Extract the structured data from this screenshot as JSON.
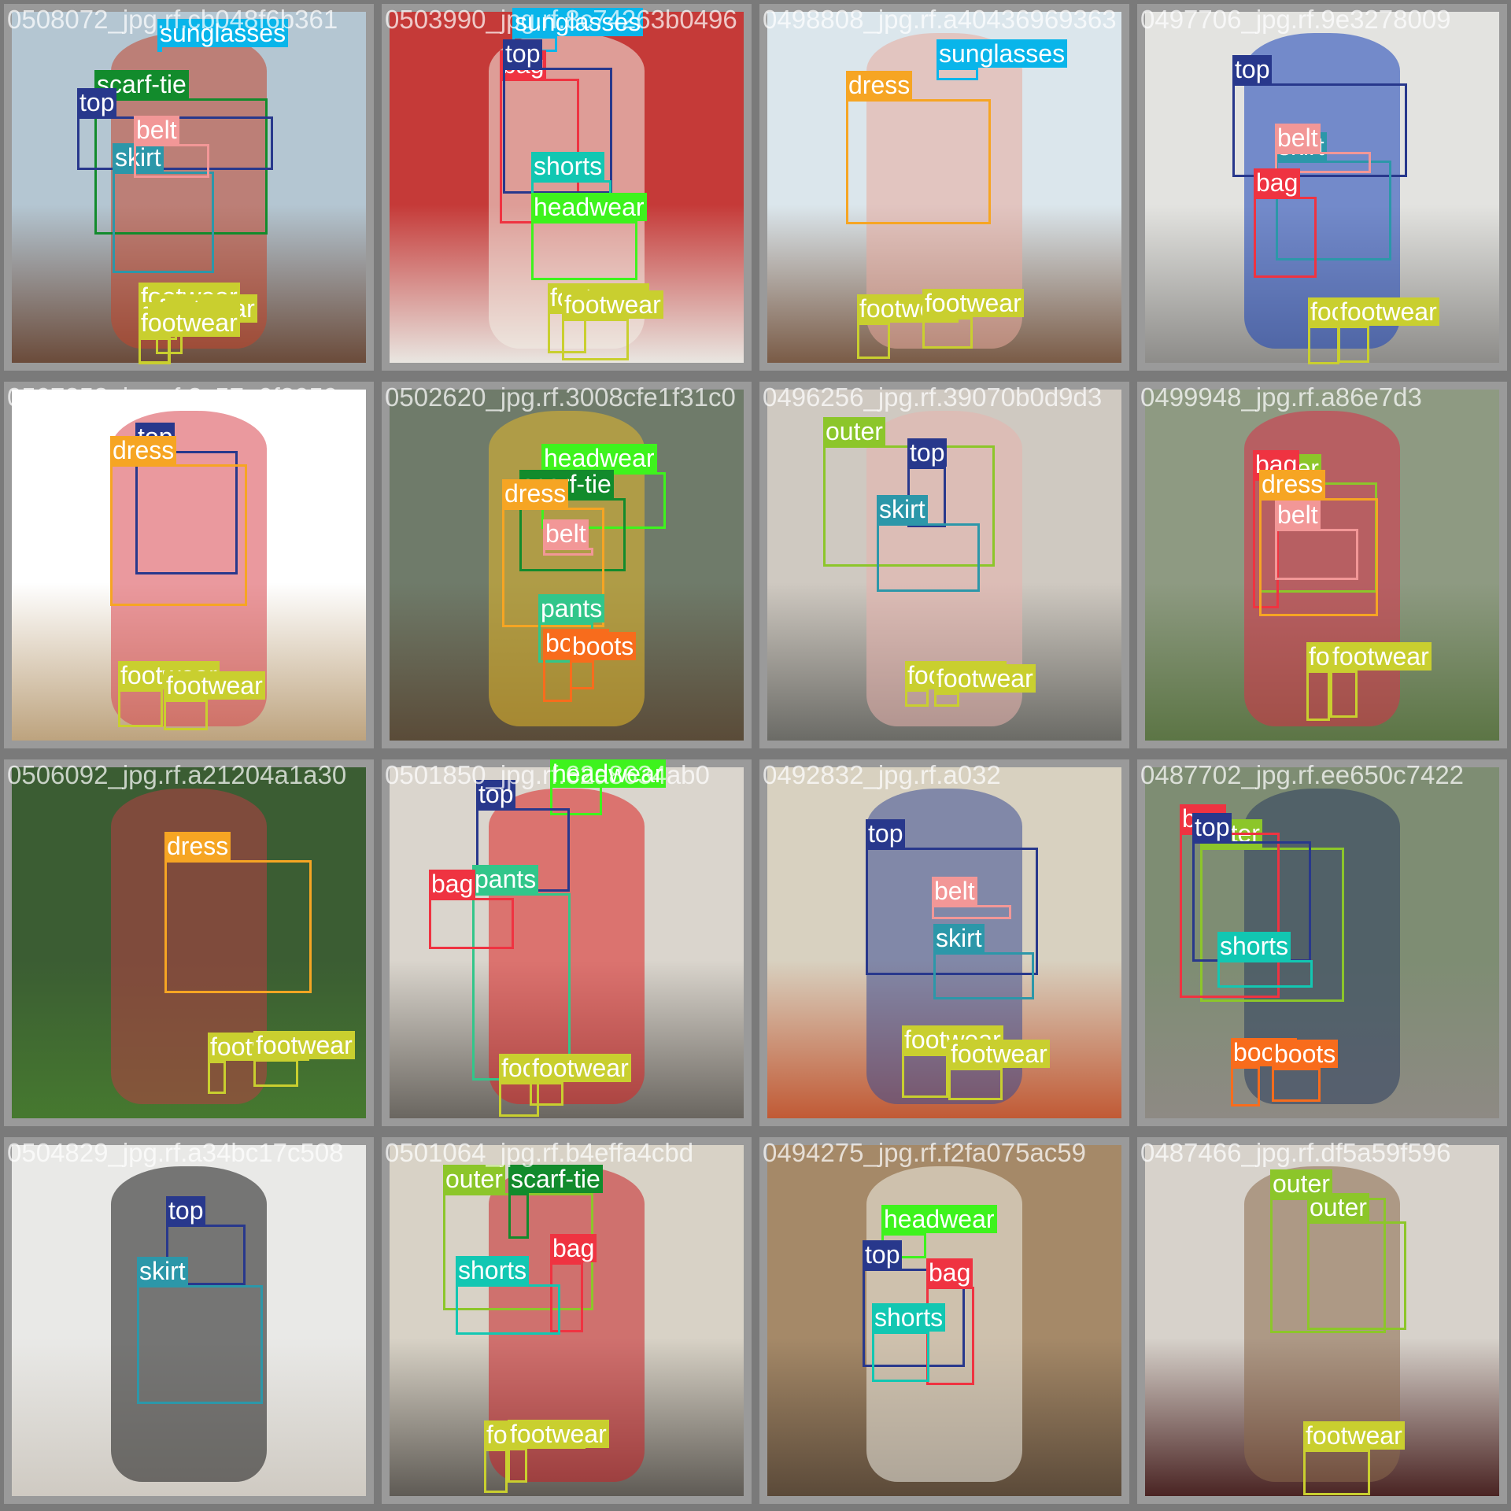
{
  "grid": {
    "rows": 4,
    "cols": 4
  },
  "class_colors": {
    "sunglasses": "#09b5ea",
    "scarf-tie": "#128b2c",
    "top": "#28388c",
    "skirt": "#2c97a9",
    "belt": "#f29797",
    "footwear": "#c9cf2f",
    "bag": "#ef3341",
    "shorts": "#12c7b2",
    "headwear": "#3ef31d",
    "dress": "#f6a523",
    "pants": "#32c68a",
    "boots": "#f86c1c",
    "outer": "#8cc62a"
  },
  "tiles": [
    {
      "filename": "0508072_jpg.rf.cb048f6b361",
      "bg": [
        "#b4c6d2",
        "#6b4b3a"
      ],
      "person": "#c2452c",
      "boxes": [
        {
          "cls": "sunglasses",
          "label": "sunglasses",
          "b": [
            200,
            60,
            46,
            18
          ]
        },
        {
          "cls": "scarf-tie",
          "label": "scarf-tie",
          "b": [
            120,
            125,
            340,
            298
          ]
        },
        {
          "cls": "top",
          "label": "top",
          "b": [
            98,
            148,
            347,
            216
          ]
        },
        {
          "cls": "skirt",
          "label": "skirt",
          "b": [
            143,
            218,
            272,
            347
          ]
        },
        {
          "cls": "belt",
          "label": "belt",
          "b": [
            170,
            183,
            266,
            226
          ]
        },
        {
          "cls": "footwear",
          "label": "footwear",
          "b": [
            176,
            395,
            225,
            432
          ]
        },
        {
          "cls": "footwear",
          "label": "footwear",
          "b": [
            198,
            410,
            232,
            450
          ]
        },
        {
          "cls": "footwear",
          "label": "footwear",
          "b": [
            176,
            420,
            216,
            462
          ]
        },
        {
          "cls": "footwear",
          "label": "footwear",
          "b": [
            176,
            428,
            217,
            463
          ]
        }
      ]
    },
    {
      "filename": "0503990_jpg.rf.8c74263b0496",
      "bg": [
        "#c53a38",
        "#e9e6e1"
      ],
      "person": "#f2efe6",
      "boxes": [
        {
          "cls": "sunglasses",
          "label": "sunglasses",
          "b": [
            651,
            46,
            708,
            66
          ]
        },
        {
          "cls": "bag",
          "label": "bag",
          "b": [
            635,
            100,
            736,
            284
          ]
        },
        {
          "cls": "top",
          "label": "top",
          "b": [
            639,
            86,
            778,
            246
          ]
        },
        {
          "cls": "shorts",
          "label": "shorts",
          "b": [
            675,
            229,
            777,
            281
          ]
        },
        {
          "cls": "headwear",
          "label": "headwear",
          "b": [
            675,
            281,
            810,
            356
          ]
        },
        {
          "cls": "footwear",
          "label": "footwear",
          "b": [
            696,
            396,
            745,
            449
          ]
        },
        {
          "cls": "footwear",
          "label": "footwear",
          "b": [
            714,
            405,
            799,
            458
          ]
        }
      ]
    },
    {
      "filename": "0498808_jpg.rf.a40436969363",
      "bg": [
        "#dbe6ec",
        "#7a5b46"
      ],
      "person": "#e8a99c",
      "boxes": [
        {
          "cls": "sunglasses",
          "label": "sunglasses",
          "b": [
            1190,
            86,
            1243,
            102
          ]
        },
        {
          "cls": "dress",
          "label": "dress",
          "b": [
            1075,
            126,
            1259,
            285
          ]
        },
        {
          "cls": "footwear",
          "label": "footwear",
          "b": [
            1089,
            410,
            1131,
            456
          ]
        },
        {
          "cls": "footwear",
          "label": "footwear",
          "b": [
            1172,
            403,
            1236,
            443
          ]
        }
      ]
    },
    {
      "filename": "0497706_jpg.rf.9e3278009",
      "bg": [
        "#e3e3e0",
        "#8d8c89"
      ],
      "person": "#1841b8",
      "boxes": [
        {
          "cls": "top",
          "label": "top",
          "b": [
            1566,
            106,
            1788,
            225
          ]
        },
        {
          "cls": "skirt",
          "label": "skirt",
          "b": [
            1621,
            204,
            1768,
            331
          ]
        },
        {
          "cls": "belt",
          "label": "belt",
          "b": [
            1620,
            193,
            1742,
            220
          ]
        },
        {
          "cls": "bag",
          "label": "bag",
          "b": [
            1593,
            250,
            1673,
            353
          ]
        },
        {
          "cls": "footwear",
          "label": "footwear",
          "b": [
            1662,
            414,
            1702,
            463
          ]
        },
        {
          "cls": "footwear",
          "label": "footwear",
          "b": [
            1700,
            414,
            1740,
            461
          ]
        }
      ]
    },
    {
      "filename": "0507258_jpg.rf.2c57a0f2059",
      "bg": [
        "#ffffff",
        "#bda37e"
      ],
      "person": "#d8454e",
      "boxes": [
        {
          "cls": "top",
          "label": "top",
          "b": [
            172,
            573,
            302,
            730
          ]
        },
        {
          "cls": "dress",
          "label": "dress",
          "b": [
            140,
            590,
            314,
            770
          ]
        },
        {
          "cls": "footwear",
          "label": "footwear",
          "b": [
            150,
            876,
            207,
            924
          ]
        },
        {
          "cls": "footwear",
          "label": "footwear",
          "b": [
            208,
            889,
            264,
            928
          ]
        }
      ]
    },
    {
      "filename": "0502620_jpg.rf.3008cfe1f31c0",
      "bg": [
        "#6f7b6a",
        "#5a4b38"
      ],
      "person": "#e3b82a",
      "boxes": [
        {
          "cls": "headwear",
          "label": "headwear",
          "b": [
            688,
            600,
            846,
            672
          ]
        },
        {
          "cls": "scarf-tie",
          "label": "scarf-tie",
          "b": [
            660,
            633,
            795,
            726
          ]
        },
        {
          "cls": "dress",
          "label": "dress",
          "b": [
            638,
            645,
            768,
            797
          ]
        },
        {
          "cls": "belt",
          "label": "belt",
          "b": [
            690,
            696,
            754,
            706
          ]
        },
        {
          "cls": "pants",
          "label": "pants",
          "b": [
            684,
            791,
            754,
            842
          ]
        },
        {
          "cls": "boots",
          "label": "boots",
          "b": [
            690,
            835,
            727,
            892
          ]
        },
        {
          "cls": "boots",
          "label": "boots",
          "b": [
            724,
            839,
            755,
            876
          ]
        }
      ]
    },
    {
      "filename": "0496256_jpg.rf.39070b0d9d3",
      "bg": [
        "#cfc9c1",
        "#6b6b66"
      ],
      "person": "#e7b3ad",
      "boxes": [
        {
          "cls": "outer",
          "label": "outer",
          "b": [
            1046,
            566,
            1264,
            720
          ]
        },
        {
          "cls": "top",
          "label": "top",
          "b": [
            1153,
            593,
            1202,
            670
          ]
        },
        {
          "cls": "skirt",
          "label": "skirt",
          "b": [
            1114,
            665,
            1245,
            752
          ]
        },
        {
          "cls": "footwear",
          "label": "footwear",
          "b": [
            1150,
            876,
            1180,
            898
          ]
        },
        {
          "cls": "footwear",
          "label": "footwear",
          "b": [
            1187,
            880,
            1219,
            898
          ]
        }
      ]
    },
    {
      "filename": "0499948_jpg.rf.a86e7d3",
      "bg": [
        "#8e9a82",
        "#5c7545"
      ],
      "person": "#d92f48",
      "boxes": [
        {
          "cls": "outer",
          "label": "outer",
          "b": [
            1600,
            613,
            1750,
            753
          ]
        },
        {
          "cls": "bag",
          "label": "bag",
          "b": [
            1592,
            608,
            1625,
            773
          ]
        },
        {
          "cls": "belt",
          "label": "belt",
          "b": [
            1620,
            672,
            1726,
            737
          ]
        },
        {
          "cls": "dress",
          "label": "dress",
          "b": [
            1600,
            633,
            1751,
            783
          ]
        },
        {
          "cls": "footwear",
          "label": "footwear",
          "b": [
            1660,
            852,
            1690,
            916
          ]
        },
        {
          "cls": "footwear",
          "label": "footwear",
          "b": [
            1690,
            852,
            1725,
            912
          ]
        }
      ]
    },
    {
      "filename": "0506092_jpg.rf.a21204a1a30",
      "bg": [
        "#3b5d33",
        "#46792f"
      ],
      "person": "#b83c43",
      "boxes": [
        {
          "cls": "dress",
          "label": "dress",
          "b": [
            209,
            1093,
            396,
            1262
          ]
        },
        {
          "cls": "footwear",
          "label": "footwear",
          "b": [
            264,
            1348,
            287,
            1390
          ]
        },
        {
          "cls": "footwear",
          "label": "footwear",
          "b": [
            322,
            1346,
            379,
            1381
          ]
        }
      ]
    },
    {
      "filename": "0501850_jpg.rf.62a8634ab0",
      "bg": [
        "#dad5cd",
        "#6a6660"
      ],
      "person": "#dc2323",
      "boxes": [
        {
          "cls": "headwear",
          "label": "headwear",
          "b": [
            699,
            980,
            765,
            1036
          ]
        },
        {
          "cls": "top",
          "label": "top",
          "b": [
            605,
            1027,
            724,
            1133
          ]
        },
        {
          "cls": "pants",
          "label": "pants",
          "b": [
            600,
            1135,
            725,
            1373
          ]
        },
        {
          "cls": "bag",
          "label": "bag",
          "b": [
            545,
            1141,
            653,
            1206
          ]
        },
        {
          "cls": "footwear",
          "label": "footwear",
          "b": [
            634,
            1375,
            685,
            1419
          ]
        },
        {
          "cls": "footwear",
          "label": "footwear",
          "b": [
            673,
            1375,
            716,
            1405
          ]
        }
      ]
    },
    {
      "filename": "0492832_jpg.rf.a032",
      "bg": [
        "#d8d1c0",
        "#c15a35"
      ],
      "person": "#3b4d93",
      "boxes": [
        {
          "cls": "top",
          "label": "top",
          "b": [
            1100,
            1077,
            1319,
            1239
          ]
        },
        {
          "cls": "belt",
          "label": "belt",
          "b": [
            1184,
            1150,
            1285,
            1168
          ]
        },
        {
          "cls": "skirt",
          "label": "skirt",
          "b": [
            1186,
            1210,
            1314,
            1270
          ]
        },
        {
          "cls": "footwear",
          "label": "footwear",
          "b": [
            1146,
            1339,
            1205,
            1395
          ]
        },
        {
          "cls": "footwear",
          "label": "footwear",
          "b": [
            1205,
            1357,
            1274,
            1398
          ]
        }
      ]
    },
    {
      "filename": "0487702_jpg.rf.ee650c7422",
      "bg": [
        "#7e8d73",
        "#8e8a84"
      ],
      "person": "#2c3e5e",
      "boxes": [
        {
          "cls": "outer",
          "label": "outer",
          "b": [
            1525,
            1077,
            1708,
            1273
          ]
        },
        {
          "cls": "bag",
          "label": "bag",
          "b": [
            1499,
            1058,
            1626,
            1268
          ]
        },
        {
          "cls": "top",
          "label": "top",
          "b": [
            1515,
            1069,
            1666,
            1222
          ]
        },
        {
          "cls": "shorts",
          "label": "shorts",
          "b": [
            1547,
            1220,
            1668,
            1255
          ]
        },
        {
          "cls": "boots",
          "label": "boots",
          "b": [
            1564,
            1355,
            1601,
            1406
          ]
        },
        {
          "cls": "boots",
          "label": "boots",
          "b": [
            1616,
            1357,
            1678,
            1400
          ]
        }
      ]
    },
    {
      "filename": "0504829_jpg.rf.a34bc17c508",
      "bg": [
        "#e9e9e7",
        "#cfcac2"
      ],
      "person": "#161616",
      "boxes": [
        {
          "cls": "top",
          "label": "top",
          "b": [
            211,
            1556,
            312,
            1633
          ]
        },
        {
          "cls": "skirt",
          "label": "skirt",
          "b": [
            174,
            1633,
            334,
            1784
          ]
        }
      ]
    },
    {
      "filename": "0501064_jpg.rf.b4effa4cbd",
      "bg": [
        "#d8d2c6",
        "#5f5b55"
      ],
      "person": "#c82027",
      "boxes": [
        {
          "cls": "outer",
          "label": "outer",
          "b": [
            563,
            1516,
            754,
            1665
          ]
        },
        {
          "cls": "scarf-tie",
          "label": "scarf-tie",
          "b": [
            646,
            1516,
            672,
            1574
          ]
        },
        {
          "cls": "bag",
          "label": "bag",
          "b": [
            699,
            1604,
            741,
            1693
          ]
        },
        {
          "cls": "shorts",
          "label": "shorts",
          "b": [
            579,
            1632,
            712,
            1696
          ]
        },
        {
          "cls": "footwear",
          "label": "footwear",
          "b": [
            615,
            1841,
            645,
            1897
          ]
        },
        {
          "cls": "footwear",
          "label": "footwear",
          "b": [
            645,
            1840,
            670,
            1884
          ]
        }
      ]
    },
    {
      "filename": "0494275_jpg.rf.f2fa075ac59",
      "bg": [
        "#a58968",
        "#5b4a39"
      ],
      "person": "#f1eee6",
      "boxes": [
        {
          "cls": "headwear",
          "label": "headwear",
          "b": [
            1120,
            1567,
            1177,
            1599
          ]
        },
        {
          "cls": "top",
          "label": "top",
          "b": [
            1096,
            1612,
            1226,
            1737
          ]
        },
        {
          "cls": "bag",
          "label": "bag",
          "b": [
            1177,
            1635,
            1238,
            1760
          ]
        },
        {
          "cls": "shorts",
          "label": "shorts",
          "b": [
            1108,
            1692,
            1181,
            1756
          ]
        }
      ]
    },
    {
      "filename": "0487466_jpg.rf.df5a59f596",
      "bg": [
        "#d7d2cb",
        "#4a2423"
      ],
      "person": "#8b6a4c",
      "boxes": [
        {
          "cls": "outer",
          "label": "outer",
          "b": [
            1614,
            1522,
            1761,
            1694
          ]
        },
        {
          "cls": "outer",
          "label": "outer",
          "b": [
            1661,
            1552,
            1787,
            1690
          ]
        },
        {
          "cls": "footwear",
          "label": "footwear",
          "b": [
            1656,
            1842,
            1741,
            1900
          ]
        }
      ]
    }
  ]
}
